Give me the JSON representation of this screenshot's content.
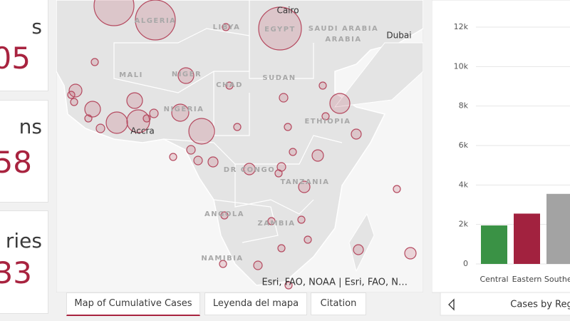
{
  "cards": [
    {
      "label": "s",
      "value": "05"
    },
    {
      "label": "ns",
      "value": "58"
    },
    {
      "label": "ries",
      "value": "33"
    }
  ],
  "map": {
    "labels": [
      "ALGERIA",
      "LIBYA",
      "EGYPT",
      "SAUDI ARABIA",
      "Cairo",
      "Dubai",
      "MALI",
      "NIGER",
      "CHAD",
      "SUDAN",
      "NIGERIA",
      "ETHIOPIA",
      "Accra",
      "DR CONGO",
      "TANZANIA",
      "ANGOLA",
      "ZAMBIA",
      "NAMIBIA"
    ],
    "attribution": "Esri, FAO, NOAA | Esri, FAO, N…"
  },
  "tabs": [
    "Map of Cumulative Cases",
    "Leyenda del mapa",
    "Citation"
  ],
  "chart_data": {
    "type": "bar",
    "categories": [
      "Central",
      "Eastern",
      "Souther"
    ],
    "values": [
      1950,
      2550,
      3550
    ],
    "colors": [
      "#3a9245",
      "#a2223f",
      "#a3a3a3"
    ],
    "ylim": [
      0,
      12000
    ],
    "yticks": [
      0,
      {
        "value": 2000,
        "label": "2k"
      },
      {
        "value": 4000,
        "label": "4k"
      },
      {
        "value": 6000,
        "label": "6k"
      },
      {
        "value": 8000,
        "label": "8k"
      },
      {
        "value": 10000,
        "label": "10k"
      },
      {
        "value": 12000,
        "label": "12k"
      }
    ],
    "grid": true,
    "footer": "Cases by Reg"
  }
}
